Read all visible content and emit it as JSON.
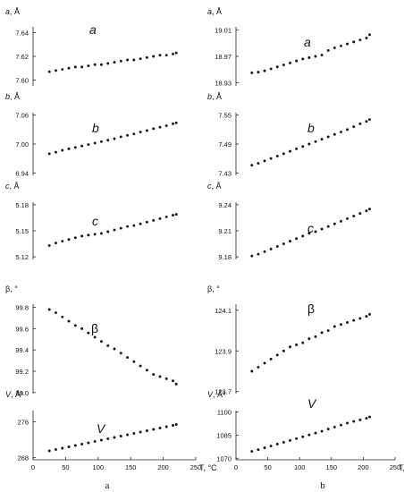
{
  "columns": [
    {
      "label": "a",
      "xlabel": "T, °C",
      "xticks": [
        "0",
        "50",
        "100",
        "150",
        "200",
        "250"
      ]
    },
    {
      "label": "b",
      "xlabel": "T, °C",
      "xticks": [
        "0",
        "50",
        "100",
        "150",
        "200",
        "250"
      ]
    }
  ],
  "chart_data": [
    {
      "type": "scatter",
      "panel": "a",
      "param": "a",
      "unit": "Å",
      "yticks": [
        "7.60",
        "7.62",
        "7.64"
      ],
      "ylim": [
        7.595,
        7.645
      ],
      "xlim": [
        0,
        250
      ],
      "x": [
        25,
        35,
        45,
        55,
        65,
        75,
        85,
        95,
        105,
        115,
        125,
        135,
        145,
        155,
        165,
        175,
        185,
        195,
        205,
        215,
        220
      ],
      "y": [
        7.607,
        7.608,
        7.609,
        7.61,
        7.611,
        7.611,
        7.612,
        7.613,
        7.613,
        7.614,
        7.615,
        7.616,
        7.617,
        7.617,
        7.618,
        7.619,
        7.62,
        7.621,
        7.621,
        7.622,
        7.623
      ]
    },
    {
      "type": "scatter",
      "panel": "a",
      "param": "b",
      "unit": "Å",
      "yticks": [
        "6.94",
        "7.00",
        "7.06"
      ],
      "ylim": [
        6.935,
        7.065
      ],
      "xlim": [
        0,
        250
      ],
      "x": [
        25,
        35,
        45,
        55,
        65,
        75,
        85,
        95,
        105,
        115,
        125,
        135,
        145,
        155,
        165,
        175,
        185,
        195,
        205,
        215,
        220
      ],
      "y": [
        6.98,
        6.983,
        6.987,
        6.99,
        6.993,
        6.996,
        6.999,
        7.002,
        7.005,
        7.008,
        7.011,
        7.015,
        7.018,
        7.021,
        7.025,
        7.028,
        7.032,
        7.035,
        7.038,
        7.042,
        7.044
      ]
    },
    {
      "type": "scatter",
      "panel": "a",
      "param": "c",
      "unit": "Å",
      "yticks": [
        "5.12",
        "5.15",
        "5.18"
      ],
      "ylim": [
        5.117,
        5.183
      ],
      "xlim": [
        0,
        250
      ],
      "x": [
        25,
        35,
        45,
        55,
        65,
        75,
        85,
        95,
        105,
        115,
        125,
        135,
        145,
        155,
        165,
        175,
        185,
        195,
        205,
        215,
        220
      ],
      "y": [
        5.133,
        5.136,
        5.138,
        5.14,
        5.142,
        5.144,
        5.145,
        5.146,
        5.147,
        5.149,
        5.151,
        5.153,
        5.155,
        5.156,
        5.158,
        5.16,
        5.162,
        5.164,
        5.166,
        5.168,
        5.169
      ]
    },
    {
      "type": "scatter",
      "panel": "a",
      "param": "β",
      "unit": "°",
      "yticks": [
        "99.8",
        "99.6",
        "99.4",
        "99.2",
        "99.0"
      ],
      "ylim": [
        98.99,
        99.83
      ],
      "xlim": [
        0,
        250
      ],
      "x": [
        25,
        35,
        45,
        55,
        65,
        75,
        85,
        95,
        105,
        115,
        125,
        135,
        145,
        155,
        165,
        175,
        185,
        195,
        205,
        215,
        220
      ],
      "y": [
        99.78,
        99.75,
        99.71,
        99.67,
        99.63,
        99.6,
        99.56,
        99.52,
        99.48,
        99.44,
        99.41,
        99.37,
        99.33,
        99.29,
        99.25,
        99.21,
        99.17,
        99.15,
        99.13,
        99.11,
        99.08
      ]
    },
    {
      "type": "scatter",
      "panel": "a",
      "param": "V",
      "unit": "Å³",
      "yticks": [
        "268",
        "276"
      ],
      "ylim": [
        267.5,
        278.5
      ],
      "xlim": [
        0,
        250
      ],
      "x": [
        25,
        35,
        45,
        55,
        65,
        75,
        85,
        95,
        105,
        115,
        125,
        135,
        145,
        155,
        165,
        175,
        185,
        195,
        205,
        215,
        220
      ],
      "y": [
        269.5,
        269.8,
        270.1,
        270.4,
        270.7,
        271.0,
        271.3,
        271.6,
        271.9,
        272.2,
        272.5,
        272.8,
        273.1,
        273.4,
        273.7,
        274.0,
        274.3,
        274.6,
        274.9,
        275.2,
        275.4
      ]
    },
    {
      "type": "scatter",
      "panel": "b",
      "param": "a",
      "unit": "Å",
      "yticks": [
        "18.93",
        "18.97",
        "19.01"
      ],
      "ylim": [
        18.925,
        19.015
      ],
      "xlim": [
        0,
        250
      ],
      "x": [
        25,
        35,
        45,
        55,
        65,
        75,
        85,
        95,
        105,
        115,
        125,
        135,
        145,
        155,
        165,
        175,
        185,
        195,
        205,
        210
      ],
      "y": [
        18.945,
        18.946,
        18.948,
        18.951,
        18.954,
        18.957,
        18.96,
        18.963,
        18.966,
        18.968,
        18.97,
        18.972,
        18.979,
        18.983,
        18.986,
        18.989,
        18.992,
        18.995,
        18.998,
        19.003
      ]
    },
    {
      "type": "scatter",
      "panel": "b",
      "param": "b",
      "unit": "Å",
      "yticks": [
        "7.43",
        "7.49",
        "7.55"
      ],
      "ylim": [
        7.425,
        7.555
      ],
      "xlim": [
        0,
        250
      ],
      "x": [
        25,
        35,
        45,
        55,
        65,
        75,
        85,
        95,
        105,
        115,
        125,
        135,
        145,
        155,
        165,
        175,
        185,
        195,
        205,
        210
      ],
      "y": [
        7.446,
        7.45,
        7.455,
        7.46,
        7.465,
        7.47,
        7.475,
        7.48,
        7.485,
        7.49,
        7.495,
        7.5,
        7.505,
        7.51,
        7.515,
        7.52,
        7.526,
        7.532,
        7.537,
        7.541
      ]
    },
    {
      "type": "scatter",
      "panel": "b",
      "param": "c",
      "unit": "Å",
      "yticks": [
        "9.18",
        "9.21",
        "9.24"
      ],
      "ylim": [
        9.177,
        9.243
      ],
      "xlim": [
        0,
        250
      ],
      "x": [
        25,
        35,
        45,
        55,
        65,
        75,
        85,
        95,
        105,
        115,
        125,
        135,
        145,
        155,
        165,
        175,
        185,
        195,
        205,
        210
      ],
      "y": [
        9.181,
        9.183,
        9.186,
        9.189,
        9.192,
        9.195,
        9.198,
        9.201,
        9.204,
        9.207,
        9.209,
        9.212,
        9.215,
        9.218,
        9.221,
        9.224,
        9.227,
        9.23,
        9.233,
        9.235
      ]
    },
    {
      "type": "scatter",
      "panel": "b",
      "param": "β",
      "unit": "°",
      "yticks": [
        "124.1",
        "123.9",
        "123.7"
      ],
      "ylim": [
        123.69,
        124.13
      ],
      "xlim": [
        0,
        250
      ],
      "x": [
        25,
        35,
        45,
        55,
        65,
        75,
        85,
        95,
        105,
        115,
        125,
        135,
        145,
        155,
        165,
        175,
        185,
        195,
        205,
        210
      ],
      "y": [
        123.8,
        123.82,
        123.84,
        123.86,
        123.88,
        123.9,
        123.92,
        123.93,
        123.94,
        123.96,
        123.97,
        123.99,
        124.0,
        124.02,
        124.03,
        124.04,
        124.05,
        124.06,
        124.07,
        124.08
      ]
    },
    {
      "type": "scatter",
      "panel": "b",
      "param": "V",
      "unit": "Å³",
      "yticks": [
        "1100",
        "1085",
        "1070"
      ],
      "ylim": [
        1069,
        1101
      ],
      "xlim": [
        0,
        250
      ],
      "x": [
        25,
        35,
        45,
        55,
        65,
        75,
        85,
        95,
        105,
        115,
        125,
        135,
        145,
        155,
        165,
        175,
        185,
        195,
        205,
        210
      ],
      "y": [
        1074.5,
        1075.6,
        1076.8,
        1078.0,
        1079.2,
        1080.4,
        1081.6,
        1082.8,
        1084.0,
        1085.2,
        1086.4,
        1087.6,
        1089.0,
        1090.3,
        1091.6,
        1092.9,
        1094.0,
        1095.0,
        1096.0,
        1096.9
      ]
    }
  ]
}
